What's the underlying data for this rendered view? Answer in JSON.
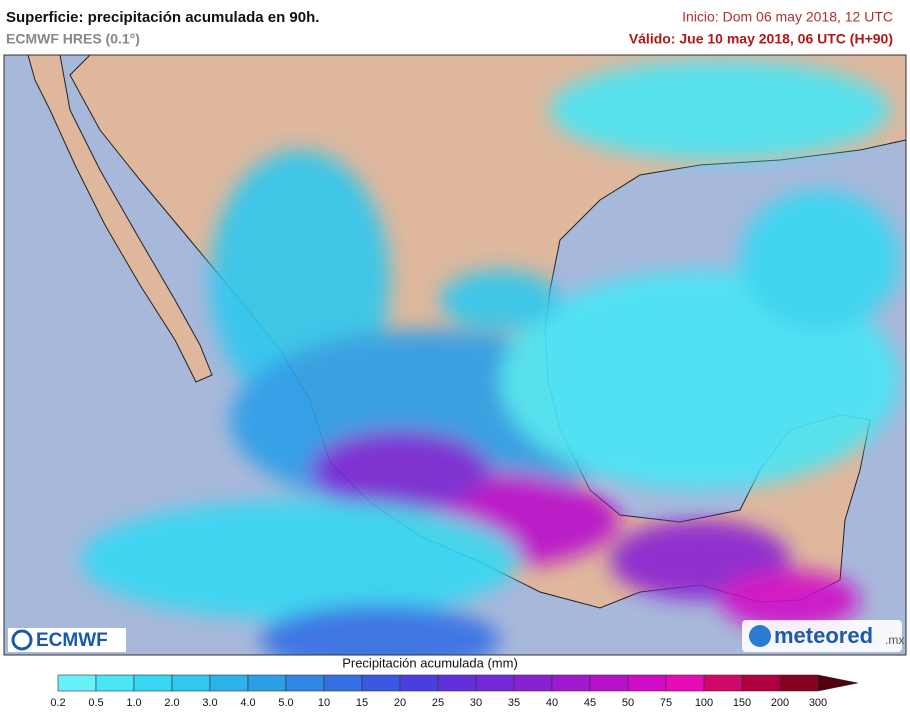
{
  "header": {
    "title": "Superficie: precipitación acumulada en 90h.",
    "model": "ECMWF HRES (0.1°)",
    "init": "Inicio: Dom 06 may 2018, 12 UTC",
    "valid": "Válido: Jue 10 may 2018, 06 UTC (H+90)"
  },
  "logos": {
    "left": "ECMWF",
    "right": "meteored",
    "right_suffix": ".mx"
  },
  "legend": {
    "title": "Precipitación acumulada (mm)",
    "levels": [
      "0.2",
      "0.5",
      "1.0",
      "2.0",
      "3.0",
      "4.0",
      "5.0",
      "10",
      "15",
      "20",
      "25",
      "30",
      "35",
      "40",
      "45",
      "50",
      "75",
      "100",
      "150",
      "200",
      "300"
    ],
    "colors": [
      "#66f2f8",
      "#48e6f6",
      "#36d8f3",
      "#2fc8ef",
      "#2bb4eb",
      "#2b9ee8",
      "#2f88e6",
      "#3470e4",
      "#3a58e2",
      "#4a3ee0",
      "#6030dc",
      "#7428d8",
      "#8820d4",
      "#a018d0",
      "#b810cc",
      "#d00cc8",
      "#e80cb8",
      "#d0086a",
      "#b00040",
      "#8a0020",
      "#500010"
    ]
  }
}
